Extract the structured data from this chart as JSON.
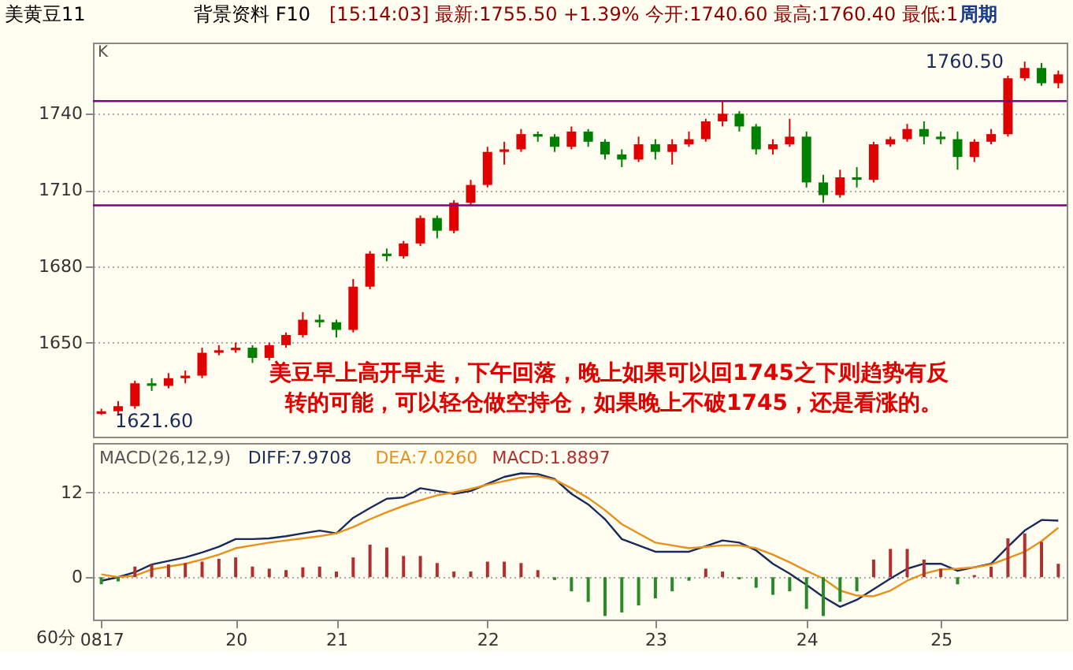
{
  "chart_data": [
    {
      "type": "candlestick",
      "title": "美黄豆11",
      "subtitle": "[15:14:03] 最新:1755.50 +1.39% 今开:1740.60 最高:1760.40 最低:1",
      "categories": [
        null,
        null,
        null,
        null,
        null,
        null,
        null,
        null,
        null,
        null,
        null,
        null,
        null,
        null,
        null,
        null,
        null,
        null,
        null,
        null,
        null,
        null,
        null,
        null,
        null,
        null,
        null,
        null,
        null,
        null,
        null,
        null,
        null,
        null,
        null,
        null,
        null,
        null,
        null,
        null,
        null,
        null,
        null,
        null,
        null,
        null,
        null,
        null,
        null,
        null,
        null,
        null,
        null,
        null,
        null,
        null,
        null,
        null
      ],
      "ohlc": [
        [
          1622,
          1624,
          1621.6,
          1623
        ],
        [
          1623,
          1627,
          1622,
          1625
        ],
        [
          1625,
          1635,
          1624,
          1634
        ],
        [
          1634,
          1636,
          1631,
          1633
        ],
        [
          1633,
          1638,
          1632,
          1636
        ],
        [
          1636,
          1639,
          1634,
          1637
        ],
        [
          1637,
          1648,
          1636,
          1646
        ],
        [
          1646,
          1649,
          1645,
          1647
        ],
        [
          1647,
          1650,
          1646,
          1648
        ],
        [
          1648,
          1649,
          1642,
          1644
        ],
        [
          1644,
          1650,
          1643,
          1649
        ],
        [
          1649,
          1654,
          1648,
          1653
        ],
        [
          1653,
          1662,
          1652,
          1659
        ],
        [
          1659,
          1661,
          1656,
          1658
        ],
        [
          1658,
          1659,
          1652,
          1655
        ],
        [
          1655,
          1675,
          1654,
          1672
        ],
        [
          1672,
          1686,
          1671,
          1685
        ],
        [
          1685,
          1687,
          1682,
          1684
        ],
        [
          1684,
          1690,
          1683,
          1689
        ],
        [
          1689,
          1700,
          1688,
          1699
        ],
        [
          1699,
          1700,
          1691,
          1694
        ],
        [
          1694,
          1706,
          1693,
          1705
        ],
        [
          1705,
          1714,
          1704,
          1712
        ],
        [
          1712,
          1727,
          1711,
          1725
        ],
        [
          1725,
          1729,
          1720,
          1726
        ],
        [
          1726,
          1734,
          1725,
          1732
        ],
        [
          1732,
          1733,
          1729,
          1731
        ],
        [
          1731,
          1732,
          1725,
          1727
        ],
        [
          1727,
          1735,
          1726,
          1733
        ],
        [
          1733,
          1734,
          1727,
          1729
        ],
        [
          1729,
          1730,
          1722,
          1724
        ],
        [
          1724,
          1726,
          1719,
          1722
        ],
        [
          1722,
          1731,
          1721,
          1728
        ],
        [
          1728,
          1730,
          1722,
          1725
        ],
        [
          1725,
          1730,
          1720,
          1728
        ],
        [
          1728,
          1733,
          1727,
          1730
        ],
        [
          1730,
          1738,
          1729,
          1737
        ],
        [
          1737,
          1745,
          1735,
          1740
        ],
        [
          1740,
          1741,
          1733,
          1735
        ],
        [
          1735,
          1736,
          1724,
          1726
        ],
        [
          1726,
          1730,
          1724,
          1728
        ],
        [
          1728,
          1738,
          1727,
          1731
        ],
        [
          1731,
          1733,
          1711,
          1713
        ],
        [
          1713,
          1716,
          1705,
          1708
        ],
        [
          1708,
          1718,
          1707,
          1715
        ],
        [
          1715,
          1719,
          1711,
          1714
        ],
        [
          1714,
          1729,
          1713,
          1728
        ],
        [
          1728,
          1731,
          1727,
          1730
        ],
        [
          1730,
          1736,
          1729,
          1734
        ],
        [
          1734,
          1737,
          1728,
          1731
        ],
        [
          1731,
          1733,
          1728,
          1730
        ],
        [
          1730,
          1733,
          1718,
          1723
        ],
        [
          1723,
          1730,
          1721,
          1729
        ],
        [
          1729,
          1734,
          1728,
          1732
        ],
        [
          1732,
          1755,
          1731,
          1754
        ],
        [
          1754,
          1760.5,
          1753,
          1758
        ],
        [
          1758,
          1760,
          1751,
          1752
        ],
        [
          1752,
          1757,
          1750,
          1755.5
        ]
      ],
      "colors": [
        "#e00000",
        "#e00000",
        "#e00000",
        "#008000",
        "#e00000",
        "#e00000",
        "#e00000",
        "#e00000",
        "#e00000",
        "#008000",
        "#e00000",
        "#e00000",
        "#e00000",
        "#008000",
        "#008000",
        "#e00000",
        "#e00000",
        "#008000",
        "#e00000",
        "#e00000",
        "#008000",
        "#e00000",
        "#e00000",
        "#e00000",
        "#e00000",
        "#e00000",
        "#008000",
        "#008000",
        "#e00000",
        "#008000",
        "#008000",
        "#008000",
        "#e00000",
        "#008000",
        "#e00000",
        "#e00000",
        "#e00000",
        "#e00000",
        "#008000",
        "#008000",
        "#e00000",
        "#e00000",
        "#008000",
        "#008000",
        "#e00000",
        "#008000",
        "#e00000",
        "#e00000",
        "#e00000",
        "#008000",
        "#008000",
        "#008000",
        "#e00000",
        "#e00000",
        "#e00000",
        "#e00000",
        "#008000",
        "#e00000"
      ],
      "ylim": [
        1613,
        1768
      ],
      "yticks": [
        1650,
        1680,
        1710,
        1740
      ],
      "tick_labels": "y",
      "grid": "y",
      "ref_lines": [
        {
          "axis": "y",
          "value": 1745,
          "color": "#800080"
        },
        {
          "axis": "y",
          "value": 1704,
          "color": "#800080"
        }
      ],
      "annotations": [
        "1760.50",
        "1621.60",
        "美豆早上高开早走，下午回落，晚上如果可以回1745之下则趋势有反",
        "转的可能，可以轻仓做空持仓，如果晚上不破1745，还是看涨的。",
        "背景资料 F10",
        "周期",
        "K"
      ]
    },
    {
      "type": "line",
      "title": "MACD(26,12,9)",
      "ylim": [
        -6,
        19
      ],
      "yticks": [
        0,
        12
      ],
      "grid": "y",
      "legend": "top left",
      "categories": [
        "0817",
        null,
        null,
        null,
        null,
        null,
        null,
        null,
        "20",
        null,
        null,
        null,
        null,
        null,
        "21",
        null,
        null,
        null,
        null,
        null,
        null,
        null,
        null,
        "22",
        null,
        null,
        null,
        null,
        null,
        null,
        null,
        null,
        null,
        "23",
        null,
        null,
        null,
        null,
        null,
        null,
        null,
        null,
        "24",
        null,
        null,
        null,
        null,
        null,
        null,
        null,
        "25",
        null,
        null,
        null,
        null,
        null,
        null,
        null
      ],
      "series": [
        {
          "name": "DIFF:7.9708",
          "color": "#1a2a5a",
          "values": [
            -0.5,
            0.0,
            0.7,
            1.8,
            2.3,
            2.8,
            3.5,
            4.3,
            5.4,
            5.4,
            5.5,
            5.8,
            6.2,
            6.6,
            6.2,
            8.4,
            9.8,
            11.1,
            11.3,
            12.6,
            12.2,
            11.8,
            12.2,
            13.2,
            14.2,
            14.7,
            14.6,
            13.9,
            11.8,
            10.3,
            8.2,
            5.4,
            4.5,
            3.6,
            3.6,
            3.6,
            4.4,
            5.2,
            4.9,
            3.8,
            1.9,
            0.5,
            -1.1,
            -2.8,
            -4.2,
            -3.2,
            -1.7,
            -0.2,
            1.2,
            1.9,
            1.9,
            0.9,
            1.4,
            1.9,
            4.3,
            6.6,
            8.1,
            8.0
          ]
        },
        {
          "name": "DEA:7.0260",
          "color": "#e8901a",
          "values": [
            0.4,
            0.0,
            0.2,
            1.1,
            1.5,
            1.9,
            2.5,
            3.2,
            4.1,
            4.5,
            4.9,
            5.2,
            5.5,
            5.8,
            6.2,
            7.1,
            8.2,
            9.2,
            10.1,
            10.9,
            11.6,
            12.0,
            12.5,
            13.1,
            13.6,
            14.1,
            14.3,
            13.8,
            12.6,
            11.2,
            9.5,
            7.5,
            6.2,
            4.9,
            4.5,
            4.1,
            4.3,
            4.5,
            4.5,
            4.1,
            3.2,
            2.1,
            0.9,
            -0.2,
            -1.9,
            -2.6,
            -2.7,
            -1.9,
            -0.5,
            0.5,
            1.1,
            1.2,
            1.4,
            1.8,
            2.7,
            3.6,
            5.1,
            7.0
          ]
        },
        {
          "name": "MACD:1.8897",
          "type": "bar",
          "color": "#b03030",
          "values": [
            -1.0,
            -0.6,
            1.5,
            1.8,
            1.8,
            2.0,
            2.2,
            2.6,
            2.8,
            1.5,
            1.2,
            1.0,
            1.4,
            1.5,
            0.8,
            2.8,
            4.6,
            4.2,
            3.0,
            3.0,
            2.0,
            0.8,
            0.8,
            2.2,
            2.2,
            2.0,
            1.0,
            -0.4,
            -2.0,
            -3.5,
            -5.5,
            -5.0,
            -4.0,
            -3.0,
            -2.0,
            -0.5,
            1.2,
            0.8,
            -0.3,
            -1.5,
            -2.5,
            -2.0,
            -4.5,
            -5.5,
            -3.5,
            -2.0,
            2.5,
            4.0,
            4.0,
            2.5,
            1.2,
            -1.0,
            0.3,
            1.5,
            5.5,
            6.2,
            5.0,
            1.9
          ],
          "colors": [
            "#2a8a2a",
            "#2a8a2a",
            "#b03030",
            "#b03030",
            "#b03030",
            "#b03030",
            "#b03030",
            "#b03030",
            "#b03030",
            "#b03030",
            "#b03030",
            "#b03030",
            "#b03030",
            "#b03030",
            "#b03030",
            "#b03030",
            "#b03030",
            "#b03030",
            "#b03030",
            "#b03030",
            "#b03030",
            "#b03030",
            "#b03030",
            "#b03030",
            "#b03030",
            "#b03030",
            "#b03030",
            "#2a8a2a",
            "#2a8a2a",
            "#2a8a2a",
            "#2a8a2a",
            "#2a8a2a",
            "#2a8a2a",
            "#2a8a2a",
            "#2a8a2a",
            "#2a8a2a",
            "#b03030",
            "#b03030",
            "#2a8a2a",
            "#2a8a2a",
            "#2a8a2a",
            "#2a8a2a",
            "#2a8a2a",
            "#2a8a2a",
            "#2a8a2a",
            "#2a8a2a",
            "#b03030",
            "#b03030",
            "#b03030",
            "#b03030",
            "#b03030",
            "#2a8a2a",
            "#b03030",
            "#b03030",
            "#b03030",
            "#b03030",
            "#b03030",
            "#b03030"
          ]
        }
      ],
      "annotations": [
        "60分"
      ]
    }
  ]
}
